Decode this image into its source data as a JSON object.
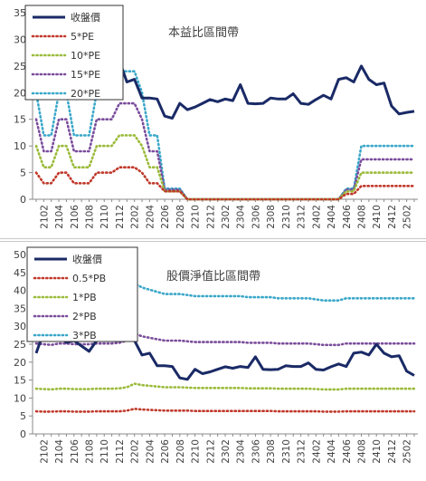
{
  "colors": {
    "close": "#1a2a66",
    "band1": "#c0392b",
    "band2": "#9bbb3b",
    "band3": "#7a4d9c",
    "band4": "#3aa7c9",
    "axis": "#8a8a8a",
    "tick_text": "#404040"
  },
  "chart_data": [
    {
      "type": "line",
      "title": "本益比區間帶",
      "ylim": [
        0,
        35
      ],
      "yticks": [
        0,
        5,
        10,
        15,
        20,
        25,
        30,
        35
      ],
      "grid": false,
      "legend_position": "top-left",
      "x": [
        "2101",
        "2102",
        "2103",
        "2104",
        "2105",
        "2106",
        "2107",
        "2108",
        "2109",
        "2110",
        "2111",
        "2112",
        "2201",
        "2202",
        "2203",
        "2204",
        "2205",
        "2206",
        "2207",
        "2208",
        "2209",
        "2210",
        "2211",
        "2212",
        "2301",
        "2302",
        "2303",
        "2304",
        "2305",
        "2306",
        "2307",
        "2308",
        "2309",
        "2310",
        "2311",
        "2312",
        "2401",
        "2402",
        "2403",
        "2404",
        "2405",
        "2406",
        "2407",
        "2408",
        "2409",
        "2410",
        "2411",
        "2412",
        "2501",
        "2502",
        "2503"
      ],
      "x_tick_labels": [
        "2102",
        "2104",
        "2106",
        "2108",
        "2110",
        "2112",
        "2202",
        "2204",
        "2206",
        "2208",
        "2210",
        "2212",
        "2302",
        "2304",
        "2306",
        "2308",
        "2310",
        "2312",
        "2402",
        "2404",
        "2406",
        "2408",
        "2410",
        "2412",
        "2502"
      ],
      "series": [
        {
          "name": "收盤價",
          "style": "solid",
          "values": [
            26,
            28,
            27,
            25,
            24,
            22.5,
            26,
            26,
            25.5,
            26,
            26,
            26,
            22,
            22.5,
            19,
            19,
            18.8,
            15.6,
            15.2,
            18,
            16.8,
            17.3,
            18,
            18.7,
            18.3,
            18.8,
            18.5,
            21.5,
            18,
            17.9,
            18,
            19,
            18.8,
            18.8,
            19.8,
            18,
            17.8,
            18.7,
            19.5,
            18.8,
            22.5,
            22.8,
            22,
            25,
            22.5,
            21.5,
            21.8,
            17.5,
            16,
            16.3,
            16.5
          ]
        },
        {
          "name": "5*PE",
          "style": "dotted",
          "values": [
            5,
            3,
            3,
            5,
            5,
            3,
            3,
            3,
            5,
            5,
            5,
            6,
            6,
            6,
            5,
            3,
            3,
            1.5,
            1.5,
            1.5,
            0,
            0,
            0,
            0,
            0,
            0,
            0,
            0,
            0,
            0,
            0,
            0,
            0,
            0,
            0,
            0,
            0,
            0,
            0,
            0,
            0,
            1,
            1,
            2.5,
            2.5,
            2.5,
            2.5,
            2.5,
            2.5,
            2.5,
            2.5
          ]
        },
        {
          "name": "10*PE",
          "style": "dotted",
          "values": [
            10,
            6,
            6,
            10,
            10,
            6,
            6,
            6,
            10,
            10,
            10,
            12,
            12,
            12,
            10,
            6,
            6,
            1.5,
            1.5,
            1.5,
            0,
            0,
            0,
            0,
            0,
            0,
            0,
            0,
            0,
            0,
            0,
            0,
            0,
            0,
            0,
            0,
            0,
            0,
            0,
            0,
            0,
            1.5,
            1.5,
            5,
            5,
            5,
            5,
            5,
            5,
            5,
            5
          ]
        },
        {
          "name": "15*PE",
          "style": "dotted",
          "values": [
            15,
            9,
            9,
            15,
            15,
            9,
            9,
            9,
            15,
            15,
            15,
            18,
            18,
            18,
            15,
            9,
            9,
            1.8,
            1.8,
            1.8,
            0,
            0,
            0,
            0,
            0,
            0,
            0,
            0,
            0,
            0,
            0,
            0,
            0,
            0,
            0,
            0,
            0,
            0,
            0,
            0,
            0,
            1.8,
            1.8,
            7.5,
            7.5,
            7.5,
            7.5,
            7.5,
            7.5,
            7.5,
            7.5
          ]
        },
        {
          "name": "20*PE",
          "style": "dotted",
          "values": [
            20,
            12,
            12,
            20,
            20,
            12,
            12,
            12,
            20,
            20,
            20,
            24,
            24,
            24,
            20,
            12,
            12,
            2,
            2,
            2,
            0,
            0,
            0,
            0,
            0,
            0,
            0,
            0,
            0,
            0,
            0,
            0,
            0,
            0,
            0,
            0,
            0,
            0,
            0,
            0,
            0,
            2,
            2,
            10,
            10,
            10,
            10,
            10,
            10,
            10,
            10
          ]
        }
      ]
    },
    {
      "type": "line",
      "title": "股價淨值比區間帶",
      "ylim": [
        0,
        50
      ],
      "yticks": [
        0,
        5,
        10,
        15,
        20,
        25,
        30,
        35,
        40,
        45,
        50
      ],
      "grid": false,
      "legend_position": "top-left",
      "x": [
        "2101",
        "2102",
        "2103",
        "2104",
        "2105",
        "2106",
        "2107",
        "2108",
        "2109",
        "2110",
        "2111",
        "2112",
        "2201",
        "2202",
        "2203",
        "2204",
        "2205",
        "2206",
        "2207",
        "2208",
        "2209",
        "2210",
        "2211",
        "2212",
        "2301",
        "2302",
        "2303",
        "2304",
        "2305",
        "2306",
        "2307",
        "2308",
        "2309",
        "2310",
        "2311",
        "2312",
        "2401",
        "2402",
        "2403",
        "2404",
        "2405",
        "2406",
        "2407",
        "2408",
        "2409",
        "2410",
        "2411",
        "2412",
        "2501",
        "2502",
        "2503"
      ],
      "x_tick_labels": [
        "2102",
        "2104",
        "2106",
        "2108",
        "2110",
        "2112",
        "2202",
        "2204",
        "2206",
        "2208",
        "2210",
        "2212",
        "2302",
        "2304",
        "2306",
        "2308",
        "2310",
        "2312",
        "2402",
        "2404",
        "2406",
        "2408",
        "2410",
        "2412",
        "2502"
      ],
      "series": [
        {
          "name": "收盤價",
          "style": "solid",
          "values": [
            22.5,
            28.5,
            29,
            27.5,
            25.5,
            26,
            24.5,
            23,
            26,
            27.5,
            28.5,
            26,
            26.2,
            26,
            22,
            22.5,
            19,
            19,
            18.8,
            15.6,
            15.2,
            18,
            16.8,
            17.3,
            18,
            18.7,
            18.3,
            18.8,
            18.5,
            21.5,
            18,
            17.9,
            18,
            19,
            18.8,
            18.8,
            19.8,
            18,
            17.8,
            18.7,
            19.5,
            18.8,
            22.5,
            22.8,
            22,
            25,
            22.5,
            21.5,
            21.8,
            17.5,
            16.3
          ]
        },
        {
          "name": "0.5*PB",
          "style": "dotted",
          "values": [
            6.3,
            6.2,
            6.2,
            6.3,
            6.3,
            6.2,
            6.2,
            6.2,
            6.3,
            6.3,
            6.3,
            6.3,
            6.5,
            7,
            6.8,
            6.7,
            6.6,
            6.5,
            6.5,
            6.5,
            6.5,
            6.4,
            6.4,
            6.4,
            6.4,
            6.4,
            6.4,
            6.4,
            6.4,
            6.4,
            6.4,
            6.4,
            6.3,
            6.3,
            6.3,
            6.3,
            6.3,
            6.3,
            6.2,
            6.2,
            6.2,
            6.3,
            6.3,
            6.3,
            6.3,
            6.3,
            6.3,
            6.3,
            6.3,
            6.3,
            6.3
          ]
        },
        {
          "name": "1*PB",
          "style": "dotted",
          "values": [
            12.6,
            12.5,
            12.4,
            12.6,
            12.6,
            12.5,
            12.5,
            12.5,
            12.6,
            12.6,
            12.6,
            12.7,
            13,
            14,
            13.6,
            13.4,
            13.2,
            13,
            13,
            13,
            12.9,
            12.8,
            12.8,
            12.8,
            12.8,
            12.8,
            12.8,
            12.8,
            12.7,
            12.7,
            12.7,
            12.7,
            12.6,
            12.6,
            12.6,
            12.6,
            12.6,
            12.5,
            12.4,
            12.4,
            12.4,
            12.6,
            12.6,
            12.6,
            12.6,
            12.6,
            12.6,
            12.6,
            12.6,
            12.6,
            12.6
          ]
        },
        {
          "name": "2*PB",
          "style": "dotted",
          "values": [
            25.2,
            25,
            24.8,
            25.2,
            25.2,
            25,
            25,
            25,
            25.2,
            25.2,
            25.2,
            25.4,
            26,
            28,
            27.2,
            26.8,
            26.4,
            26,
            26,
            26,
            25.8,
            25.6,
            25.6,
            25.6,
            25.6,
            25.6,
            25.6,
            25.6,
            25.4,
            25.4,
            25.4,
            25.4,
            25.2,
            25.2,
            25.2,
            25.2,
            25.2,
            25,
            24.8,
            24.8,
            24.8,
            25.2,
            25.2,
            25.2,
            25.2,
            25.2,
            25.2,
            25.2,
            25.2,
            25.2,
            25.2
          ]
        },
        {
          "name": "3*PB",
          "style": "dotted",
          "values": [
            37.8,
            37.5,
            37.2,
            37.8,
            37.8,
            37.5,
            37.5,
            37.5,
            37.8,
            37.8,
            37.8,
            38.1,
            39,
            42,
            40.8,
            40.2,
            39.6,
            39,
            39,
            39,
            38.7,
            38.4,
            38.4,
            38.4,
            38.4,
            38.4,
            38.4,
            38.4,
            38.1,
            38.1,
            38.1,
            38.1,
            37.8,
            37.8,
            37.8,
            37.8,
            37.8,
            37.5,
            37.2,
            37.2,
            37.2,
            37.8,
            37.8,
            37.8,
            37.8,
            37.8,
            37.8,
            37.8,
            37.8,
            37.8,
            37.8
          ]
        }
      ]
    }
  ]
}
